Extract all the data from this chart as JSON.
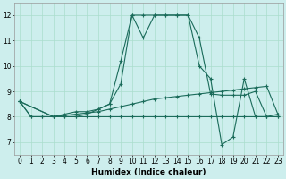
{
  "xlabel": "Humidex (Indice chaleur)",
  "background_color": "#cdeeed",
  "grid_color": "#aaddcc",
  "line_color": "#1a6b5a",
  "xlim": [
    -0.5,
    23.5
  ],
  "ylim": [
    6.5,
    12.5
  ],
  "xticks": [
    0,
    1,
    2,
    3,
    4,
    5,
    6,
    7,
    8,
    9,
    10,
    11,
    12,
    13,
    14,
    15,
    16,
    17,
    18,
    19,
    20,
    21,
    22,
    23
  ],
  "yticks": [
    7,
    8,
    9,
    10,
    11,
    12
  ],
  "series": [
    {
      "x": [
        0,
        1,
        2,
        3,
        4,
        5,
        6,
        7,
        8,
        9,
        10,
        11,
        12,
        13,
        14,
        15,
        16,
        17,
        18,
        19,
        20,
        21,
        22,
        23
      ],
      "y": [
        8.6,
        8.0,
        8.0,
        8.0,
        8.0,
        8.0,
        8.0,
        8.0,
        8.0,
        8.0,
        8.0,
        8.0,
        8.0,
        8.0,
        8.0,
        8.0,
        8.0,
        8.0,
        8.0,
        8.0,
        8.0,
        8.0,
        8.0,
        8.0
      ]
    },
    {
      "x": [
        0,
        1,
        2,
        3,
        4,
        5,
        6,
        7,
        8,
        9,
        10,
        11,
        12,
        13,
        14,
        15,
        16,
        17,
        18,
        19,
        20,
        21,
        22,
        23
      ],
      "y": [
        8.6,
        8.0,
        8.0,
        8.0,
        8.05,
        8.1,
        8.15,
        8.2,
        8.3,
        8.4,
        8.5,
        8.6,
        8.7,
        8.75,
        8.8,
        8.85,
        8.9,
        8.95,
        9.0,
        9.05,
        9.1,
        9.15,
        9.2,
        8.1
      ]
    },
    {
      "x": [
        0,
        3,
        4,
        5,
        6,
        7,
        8,
        9,
        10,
        11,
        12,
        13,
        14,
        15,
        16,
        17,
        18,
        19,
        20,
        21,
        22,
        23
      ],
      "y": [
        8.6,
        8.0,
        8.0,
        8.0,
        8.1,
        8.3,
        8.5,
        9.3,
        12.0,
        11.1,
        12.0,
        12.0,
        12.0,
        12.0,
        11.1,
        8.9,
        8.85,
        8.85,
        8.85,
        9.0,
        8.0,
        8.1
      ]
    },
    {
      "x": [
        0,
        3,
        4,
        5,
        6,
        7,
        8,
        9,
        10,
        11,
        12,
        13,
        14,
        15,
        16,
        17,
        18,
        19,
        20,
        21,
        22,
        23
      ],
      "y": [
        8.6,
        8.0,
        8.1,
        8.2,
        8.2,
        8.3,
        8.5,
        10.2,
        12.0,
        12.0,
        12.0,
        12.0,
        12.0,
        12.0,
        10.0,
        9.5,
        6.9,
        7.2,
        9.5,
        8.0,
        8.0,
        8.0
      ]
    }
  ]
}
